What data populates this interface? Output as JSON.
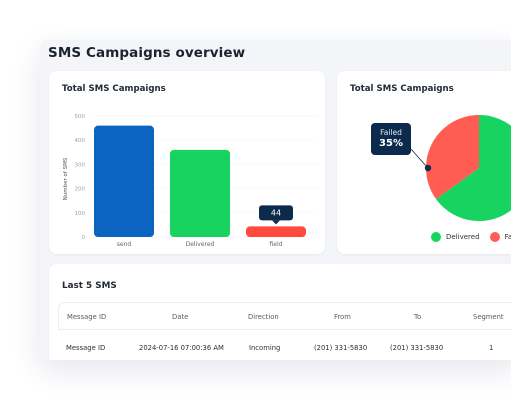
{
  "panel": {
    "title": "SMS Campaigns overview"
  },
  "bar_card": {
    "title": "Total SMS Campaigns"
  },
  "pie_card": {
    "title": "Total SMS Campaigns",
    "tooltip_label": "Failed",
    "tooltip_value": "35%",
    "legend": [
      {
        "label": "Delivered",
        "color": "#16d45f"
      },
      {
        "label": "Fa",
        "color": "#ff5c52"
      }
    ]
  },
  "chart_data": [
    {
      "type": "bar",
      "title": "Total SMS Campaigns",
      "ylabel": "Number of SMS",
      "xlabel": "",
      "categories": [
        "send",
        "Delivered",
        "field"
      ],
      "values": [
        460,
        360,
        44
      ],
      "colors": [
        "#0b64c0",
        "#16d45f",
        "#ff4a3d"
      ],
      "ylim": [
        0,
        500
      ],
      "yticks": [
        "0",
        "100",
        "200",
        "300",
        "400",
        "500"
      ],
      "annotation": {
        "category": "field",
        "text": "44"
      },
      "grid": true
    },
    {
      "type": "pie",
      "title": "Total SMS Campaigns",
      "slices": [
        {
          "name": "Delivered",
          "value": 65,
          "color": "#16d45f"
        },
        {
          "name": "Failed",
          "value": 35,
          "color": "#ff5c52"
        }
      ],
      "legend": "bottom"
    }
  ],
  "table": {
    "title": "Last 5 SMS",
    "columns": [
      "Message ID",
      "Date",
      "Direction",
      "From",
      "To",
      "Segment"
    ],
    "rows": [
      [
        "Message ID",
        "2024-07-16 07:00:36 AM",
        "Incoming",
        "(201) 331-5830",
        "(201) 331-5830",
        "1"
      ]
    ]
  }
}
